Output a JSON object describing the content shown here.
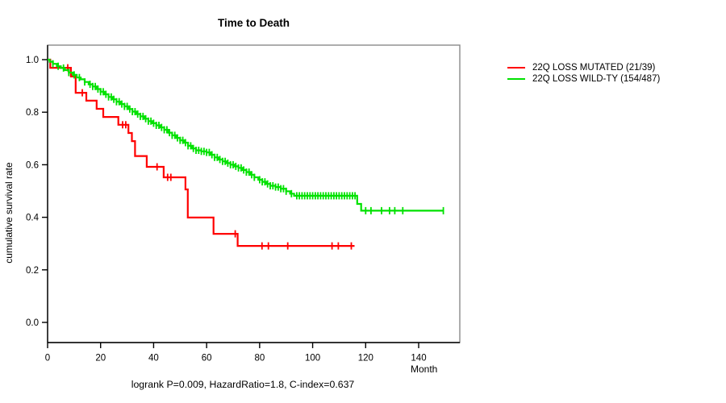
{
  "chart_data": {
    "type": "line",
    "chart_style": "kaplan-meier-step",
    "title": "Time to Death",
    "xlabel": "Month",
    "ylabel": "cumulative survival rate",
    "annotation": "logrank P=0.009, HazardRatio=1.8, C-index=0.637",
    "xlim": [
      0,
      155
    ],
    "ylim": [
      0.0,
      1.0
    ],
    "x_ticks": [
      0,
      20,
      40,
      60,
      80,
      100,
      120,
      140
    ],
    "y_ticks": [
      {
        "value": 1.0,
        "label": "1.0"
      },
      {
        "value": 0.8,
        "label": "0.8"
      },
      {
        "value": 0.6,
        "label": "0.6"
      },
      {
        "value": 0.4,
        "label": "0.4"
      },
      {
        "value": 0.2,
        "label": "0.2"
      },
      {
        "value": 0.0,
        "label": "0.0"
      }
    ],
    "grid": false,
    "legend_position": "outside-top-right",
    "series": [
      {
        "name": "22Q LOSS MUTATED (21/39)",
        "color": "#ff0000",
        "steps": [
          [
            0,
            1.0
          ],
          [
            1,
            0.969
          ],
          [
            8.8,
            0.936
          ],
          [
            10.6,
            0.874
          ],
          [
            14.6,
            0.844
          ],
          [
            18.5,
            0.813
          ],
          [
            21,
            0.782
          ],
          [
            26.7,
            0.752
          ],
          [
            30.5,
            0.721
          ],
          [
            31.8,
            0.69
          ],
          [
            33,
            0.633
          ],
          [
            37.4,
            0.592
          ],
          [
            43.8,
            0.552
          ],
          [
            52,
            0.506
          ],
          [
            52.9,
            0.399
          ],
          [
            62.6,
            0.337
          ],
          [
            71.7,
            0.291
          ]
        ],
        "end_month": 115.8,
        "censor_marks": [
          7.6,
          13.1,
          28.3,
          29.5,
          41.3,
          45.3,
          46.5,
          70.8,
          80.9,
          83.3,
          90.6,
          107.3,
          109.7,
          114.6
        ]
      },
      {
        "name": "22Q LOSS WILD-TY (154/487)",
        "color": "#00e100",
        "steps": [
          [
            0,
            1.0
          ],
          [
            0.8,
            0.992
          ],
          [
            2,
            0.984
          ],
          [
            3.5,
            0.975
          ],
          [
            5,
            0.968
          ],
          [
            6.5,
            0.96
          ],
          [
            8,
            0.951
          ],
          [
            9.5,
            0.942
          ],
          [
            11,
            0.932
          ],
          [
            12.5,
            0.925
          ],
          [
            14,
            0.915
          ],
          [
            15.5,
            0.906
          ],
          [
            17,
            0.898
          ],
          [
            18.5,
            0.888
          ],
          [
            20,
            0.878
          ],
          [
            21.5,
            0.868
          ],
          [
            23,
            0.858
          ],
          [
            24.5,
            0.849
          ],
          [
            26,
            0.84
          ],
          [
            27.5,
            0.831
          ],
          [
            29,
            0.822
          ],
          [
            30.5,
            0.812
          ],
          [
            32,
            0.802
          ],
          [
            33.5,
            0.793
          ],
          [
            35,
            0.784
          ],
          [
            36.5,
            0.775
          ],
          [
            38,
            0.766
          ],
          [
            39.5,
            0.758
          ],
          [
            41,
            0.75
          ],
          [
            42.5,
            0.742
          ],
          [
            44,
            0.733
          ],
          [
            45.5,
            0.722
          ],
          [
            47,
            0.712
          ],
          [
            48.5,
            0.702
          ],
          [
            50,
            0.693
          ],
          [
            51.5,
            0.684
          ],
          [
            53,
            0.672
          ],
          [
            54.5,
            0.662
          ],
          [
            56,
            0.655
          ],
          [
            58,
            0.651
          ],
          [
            60,
            0.647
          ],
          [
            61.5,
            0.638
          ],
          [
            63,
            0.628
          ],
          [
            64.5,
            0.62
          ],
          [
            66,
            0.613
          ],
          [
            67.5,
            0.606
          ],
          [
            69,
            0.6
          ],
          [
            70.5,
            0.594
          ],
          [
            72,
            0.588
          ],
          [
            73.5,
            0.58
          ],
          [
            75,
            0.572
          ],
          [
            76.5,
            0.562
          ],
          [
            78,
            0.552
          ],
          [
            79.5,
            0.543
          ],
          [
            81,
            0.535
          ],
          [
            82.5,
            0.527
          ],
          [
            84,
            0.52
          ],
          [
            86,
            0.515
          ],
          [
            88,
            0.509
          ],
          [
            90,
            0.499
          ],
          [
            91.5,
            0.49
          ],
          [
            93,
            0.482
          ],
          [
            116.8,
            0.451
          ],
          [
            118.3,
            0.425
          ]
        ],
        "end_month": 149.3,
        "censor_marks": [
          2,
          4,
          6,
          8,
          10,
          12,
          14,
          16,
          17,
          18,
          19,
          20,
          21,
          22,
          23,
          24,
          25,
          26,
          27,
          28,
          29,
          30,
          31,
          32,
          33,
          34,
          35,
          36,
          37,
          38,
          39,
          40,
          41,
          42,
          43,
          44,
          45,
          46,
          47,
          48,
          49,
          50,
          51,
          52,
          53,
          54,
          55,
          56,
          57,
          58,
          59,
          60,
          61,
          62,
          63,
          64,
          65,
          66,
          67,
          68,
          69,
          70,
          71,
          72,
          73,
          74,
          75,
          76,
          77,
          78,
          80,
          81,
          82,
          83,
          84,
          85,
          86,
          87,
          88,
          89,
          90,
          92,
          94,
          95,
          96,
          97,
          98,
          99,
          100,
          101,
          102,
          103,
          104,
          105,
          106,
          107,
          108,
          109,
          110,
          111,
          112,
          113,
          114,
          115,
          116,
          120,
          122,
          126,
          129,
          131,
          134,
          149.3
        ]
      }
    ]
  }
}
